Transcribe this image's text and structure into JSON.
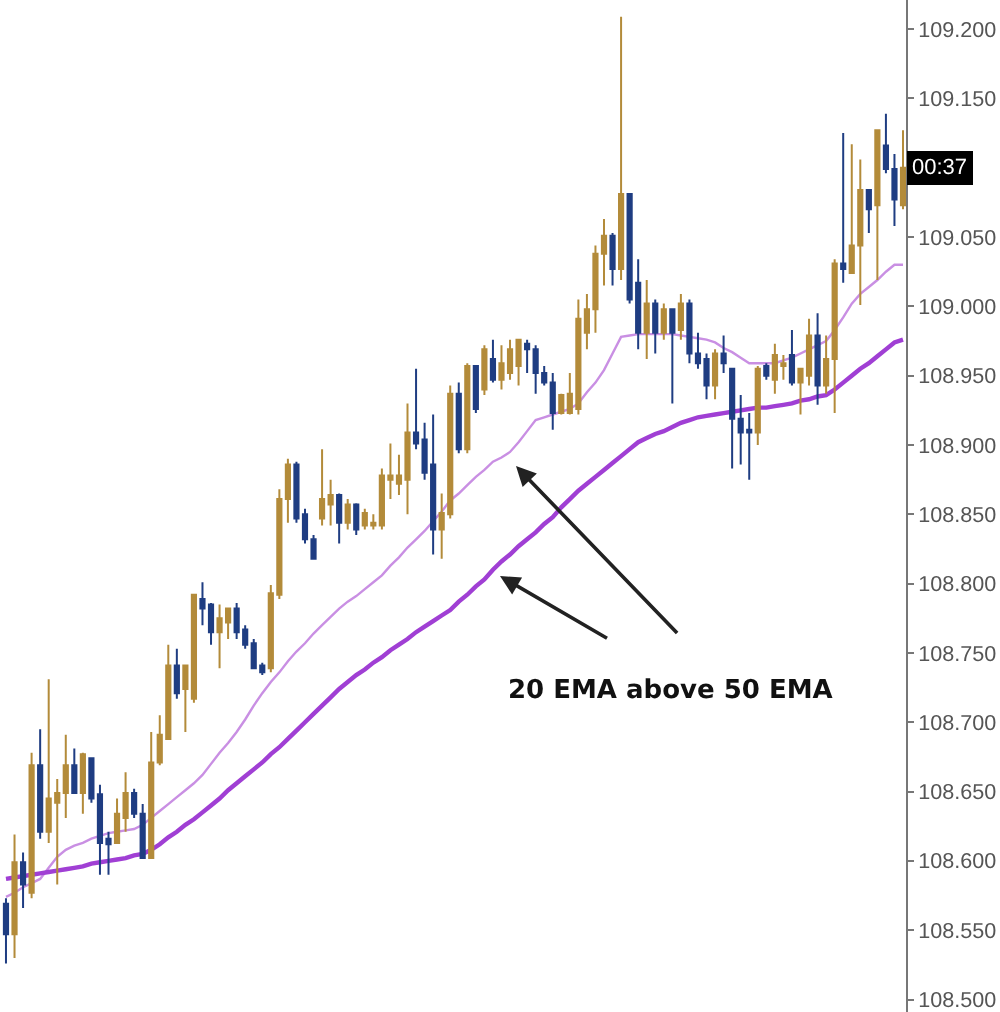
{
  "chart_data": {
    "type": "candlestick",
    "categories": [
      null,
      null,
      null,
      null,
      null,
      null,
      null,
      null,
      null,
      null,
      null,
      null,
      null,
      null,
      null,
      null,
      null,
      null,
      null,
      null,
      null,
      null,
      null,
      null,
      null,
      null,
      null,
      null,
      null,
      null,
      null,
      null,
      null,
      null,
      null,
      null,
      null,
      null,
      null,
      null,
      null,
      null,
      null,
      null,
      null,
      null,
      null,
      null,
      null,
      null,
      null,
      null,
      null,
      null,
      null,
      null,
      null,
      null,
      null,
      null,
      null,
      null,
      null,
      null,
      null,
      null,
      null,
      null,
      null,
      null,
      null,
      null,
      null,
      null,
      null,
      null,
      null,
      null,
      null,
      null,
      null,
      null,
      null,
      null,
      null,
      null,
      null,
      null,
      null,
      null,
      null,
      null,
      null,
      null,
      null,
      null,
      null,
      null,
      null,
      null,
      null,
      null,
      null,
      null,
      null,
      null
    ],
    "ohlc": [
      [
        108.569,
        108.573,
        108.526,
        108.547
      ],
      [
        108.547,
        108.619,
        108.53,
        108.599
      ],
      [
        108.599,
        108.606,
        108.566,
        108.583
      ],
      [
        108.577,
        108.678,
        108.573,
        108.669
      ],
      [
        108.669,
        108.695,
        108.616,
        108.621
      ],
      [
        108.621,
        108.731,
        108.613,
        108.645
      ],
      [
        108.642,
        108.659,
        108.583,
        108.649
      ],
      [
        108.649,
        108.691,
        108.631,
        108.669
      ],
      [
        108.669,
        108.681,
        108.649,
        108.649
      ],
      [
        108.649,
        108.678,
        108.634,
        108.677
      ],
      [
        108.674,
        108.674,
        108.642,
        108.645
      ],
      [
        108.648,
        108.655,
        108.59,
        108.613
      ],
      [
        108.616,
        108.621,
        108.59,
        108.612
      ],
      [
        108.613,
        108.645,
        108.613,
        108.634
      ],
      [
        108.631,
        108.664,
        108.621,
        108.649
      ],
      [
        108.649,
        108.652,
        108.631,
        108.634
      ],
      [
        108.634,
        108.641,
        108.602,
        108.602
      ],
      [
        108.602,
        108.693,
        108.602,
        108.671
      ],
      [
        108.671,
        108.705,
        108.669,
        108.691
      ],
      [
        108.688,
        108.756,
        108.688,
        108.741
      ],
      [
        108.741,
        108.753,
        108.717,
        108.721
      ],
      [
        108.724,
        108.741,
        108.693,
        108.741
      ],
      [
        108.717,
        108.792,
        108.714,
        108.792
      ],
      [
        108.789,
        108.801,
        108.77,
        108.782
      ],
      [
        108.785,
        108.786,
        108.756,
        108.765
      ],
      [
        108.765,
        108.785,
        108.739,
        108.775
      ],
      [
        108.772,
        108.782,
        108.76,
        108.782
      ],
      [
        108.782,
        108.786,
        108.76,
        108.765
      ],
      [
        108.767,
        108.77,
        108.753,
        108.756
      ],
      [
        108.757,
        108.76,
        108.739,
        108.739
      ],
      [
        108.741,
        108.743,
        108.734,
        108.736
      ],
      [
        108.739,
        108.799,
        108.736,
        108.793
      ],
      [
        108.792,
        108.868,
        108.789,
        108.861
      ],
      [
        108.861,
        108.89,
        108.844,
        108.886
      ],
      [
        108.886,
        108.888,
        108.844,
        108.847
      ],
      [
        108.85,
        108.854,
        108.829,
        108.832
      ],
      [
        108.832,
        108.835,
        108.818,
        108.818
      ],
      [
        108.847,
        108.897,
        108.842,
        108.861
      ],
      [
        108.857,
        108.875,
        108.842,
        108.864
      ],
      [
        108.864,
        108.865,
        108.829,
        108.844
      ],
      [
        108.844,
        108.861,
        108.839,
        108.857
      ],
      [
        108.857,
        108.858,
        108.835,
        108.839
      ],
      [
        108.842,
        108.854,
        108.839,
        108.851
      ],
      [
        108.842,
        108.85,
        108.839,
        108.844
      ],
      [
        108.842,
        108.883,
        108.839,
        108.878
      ],
      [
        108.875,
        108.901,
        108.861,
        108.878
      ],
      [
        108.872,
        108.893,
        108.864,
        108.878
      ],
      [
        108.875,
        108.93,
        108.85,
        108.909
      ],
      [
        108.909,
        108.955,
        108.897,
        108.901
      ],
      [
        108.904,
        108.916,
        108.875,
        108.88
      ],
      [
        108.886,
        108.922,
        108.821,
        108.839
      ],
      [
        108.839,
        108.865,
        108.818,
        108.851
      ],
      [
        108.85,
        108.943,
        108.847,
        108.937
      ],
      [
        108.937,
        108.945,
        108.894,
        108.897
      ],
      [
        108.897,
        108.959,
        108.894,
        108.957
      ],
      [
        108.957,
        108.957,
        108.923,
        108.926
      ],
      [
        108.94,
        108.972,
        108.936,
        108.969
      ],
      [
        108.962,
        108.976,
        108.945,
        108.947
      ],
      [
        108.947,
        108.972,
        108.94,
        108.959
      ],
      [
        108.952,
        108.976,
        108.947,
        108.969
      ],
      [
        108.957,
        108.976,
        108.943,
        108.976
      ],
      [
        108.973,
        108.976,
        108.952,
        108.969
      ],
      [
        108.969,
        108.972,
        108.937,
        108.952
      ],
      [
        108.952,
        108.957,
        108.943,
        108.945
      ],
      [
        108.945,
        108.952,
        108.911,
        108.923
      ],
      [
        108.923,
        108.937,
        108.922,
        108.936
      ],
      [
        108.923,
        108.952,
        108.922,
        108.937
      ],
      [
        108.926,
        109.005,
        108.922,
        108.991
      ],
      [
        108.981,
        109.009,
        108.969,
        108.998
      ],
      [
        108.998,
        109.044,
        108.981,
        109.038
      ],
      [
        109.038,
        109.063,
        109.015,
        109.051
      ],
      [
        109.051,
        109.053,
        109.015,
        109.027
      ],
      [
        109.027,
        109.209,
        109.019,
        109.081
      ],
      [
        109.081,
        109.081,
        109.002,
        109.005
      ],
      [
        109.017,
        109.034,
        108.969,
        108.981
      ],
      [
        108.981,
        109.019,
        108.962,
        109.002
      ],
      [
        109.002,
        109.005,
        108.966,
        108.981
      ],
      [
        108.981,
        109.002,
        108.976,
        108.998
      ],
      [
        108.998,
        108.998,
        108.93,
        108.981
      ],
      [
        108.983,
        109.009,
        108.976,
        109.002
      ],
      [
        109.002,
        109.005,
        108.959,
        108.966
      ],
      [
        108.966,
        108.981,
        108.955,
        108.959
      ],
      [
        108.962,
        108.966,
        108.933,
        108.943
      ],
      [
        108.943,
        108.969,
        108.933,
        108.966
      ],
      [
        108.966,
        108.979,
        108.952,
        108.959
      ],
      [
        108.955,
        108.955,
        108.883,
        108.919
      ],
      [
        108.919,
        108.936,
        108.886,
        108.909
      ],
      [
        108.911,
        108.923,
        108.875,
        108.909
      ],
      [
        108.909,
        108.957,
        108.9,
        108.955
      ],
      [
        108.957,
        108.959,
        108.947,
        108.95
      ],
      [
        108.947,
        108.973,
        108.937,
        108.965
      ],
      [
        108.957,
        108.965,
        108.947,
        108.959
      ],
      [
        108.965,
        108.983,
        108.943,
        108.945
      ],
      [
        108.945,
        108.955,
        108.922,
        108.955
      ],
      [
        108.95,
        108.991,
        108.943,
        108.979
      ],
      [
        108.979,
        108.995,
        108.929,
        108.943
      ],
      [
        108.943,
        108.979,
        108.937,
        108.962
      ],
      [
        108.962,
        109.034,
        108.923,
        109.031
      ],
      [
        109.031,
        109.125,
        109.017,
        109.027
      ],
      [
        109.024,
        109.117,
        109.024,
        109.044
      ],
      [
        109.044,
        109.106,
        109.001,
        109.084
      ],
      [
        109.084,
        109.084,
        109.053,
        109.07
      ],
      [
        109.073,
        109.127,
        109.019,
        109.127
      ],
      [
        109.116,
        109.139,
        109.096,
        109.099
      ],
      [
        109.099,
        109.11,
        109.058,
        109.077
      ],
      [
        109.073,
        109.127,
        109.07,
        109.1
      ]
    ],
    "colors": [
      "#1f3d82",
      "#b38b3a",
      "#1f3d82",
      "#b38b3a",
      "#1f3d82",
      "#b38b3a",
      "#b38b3a",
      "#b38b3a",
      "#1f3d82",
      "#b38b3a",
      "#1f3d82",
      "#1f3d82",
      "#1f3d82",
      "#b38b3a",
      "#b38b3a",
      "#1f3d82",
      "#1f3d82",
      "#b38b3a",
      "#b38b3a",
      "#b38b3a",
      "#1f3d82",
      "#b38b3a",
      "#b38b3a",
      "#1f3d82",
      "#1f3d82",
      "#b38b3a",
      "#b38b3a",
      "#1f3d82",
      "#1f3d82",
      "#1f3d82",
      "#1f3d82",
      "#b38b3a",
      "#b38b3a",
      "#b38b3a",
      "#1f3d82",
      "#1f3d82",
      "#1f3d82",
      "#b38b3a",
      "#b38b3a",
      "#1f3d82",
      "#b38b3a",
      "#1f3d82",
      "#b38b3a",
      "#b38b3a",
      "#b38b3a",
      "#b38b3a",
      "#b38b3a",
      "#b38b3a",
      "#1f3d82",
      "#1f3d82",
      "#1f3d82",
      "#b38b3a",
      "#b38b3a",
      "#1f3d82",
      "#b38b3a",
      "#1f3d82",
      "#b38b3a",
      "#1f3d82",
      "#b38b3a",
      "#b38b3a",
      "#b38b3a",
      "#1f3d82",
      "#1f3d82",
      "#1f3d82",
      "#1f3d82",
      "#b38b3a",
      "#b38b3a",
      "#b38b3a",
      "#b38b3a",
      "#b38b3a",
      "#b38b3a",
      "#1f3d82",
      "#b38b3a",
      "#1f3d82",
      "#1f3d82",
      "#b38b3a",
      "#1f3d82",
      "#b38b3a",
      "#1f3d82",
      "#b38b3a",
      "#1f3d82",
      "#1f3d82",
      "#1f3d82",
      "#b38b3a",
      "#1f3d82",
      "#1f3d82",
      "#1f3d82",
      "#1f3d82",
      "#b38b3a",
      "#1f3d82",
      "#b38b3a",
      "#b38b3a",
      "#1f3d82",
      "#b38b3a",
      "#b38b3a",
      "#1f3d82",
      "#b38b3a",
      "#b38b3a",
      "#1f3d82",
      "#b38b3a",
      "#b38b3a",
      "#1f3d82",
      "#b38b3a",
      "#1f3d82",
      "#1f3d82",
      "#b38b3a"
    ],
    "series": [
      {
        "type": "line",
        "color": "#c98fe3",
        "values": [
          108.574,
          108.577,
          108.581,
          108.584,
          108.587,
          108.595,
          108.603,
          108.608,
          108.611,
          108.613,
          108.616,
          108.618,
          108.62,
          108.621,
          108.622,
          108.623,
          108.626,
          108.631,
          108.636,
          108.641,
          108.646,
          108.651,
          108.656,
          108.662,
          108.67,
          108.678,
          108.685,
          108.693,
          108.702,
          108.712,
          108.721,
          108.729,
          108.736,
          108.744,
          108.751,
          108.757,
          108.764,
          108.77,
          108.776,
          108.782,
          108.787,
          108.791,
          108.796,
          108.801,
          108.806,
          108.813,
          108.819,
          108.826,
          108.832,
          108.838,
          108.845,
          108.852,
          108.86,
          108.865,
          108.871,
          108.877,
          108.882,
          108.888,
          108.891,
          108.895,
          108.902,
          108.91,
          108.918,
          108.92,
          108.922,
          108.924,
          108.926,
          108.93,
          108.938,
          108.945,
          108.954,
          108.966,
          108.978,
          108.979,
          108.98,
          108.98,
          108.98,
          108.98,
          108.98,
          108.979,
          108.978,
          108.977,
          108.976,
          108.974,
          108.97,
          108.967,
          108.963,
          108.959,
          108.959,
          108.959,
          108.959,
          108.961,
          108.963,
          108.966,
          108.969,
          108.972,
          108.975,
          108.983,
          108.992,
          109.002,
          109.009,
          109.014,
          109.019,
          109.025,
          109.03,
          109.03
        ]
      },
      {
        "type": "line",
        "color": "#a03fd4",
        "values": [
          108.587,
          108.588,
          108.589,
          108.59,
          108.591,
          108.592,
          108.593,
          108.594,
          108.595,
          108.596,
          108.598,
          108.599,
          108.6,
          108.601,
          108.602,
          108.604,
          108.605,
          108.608,
          108.612,
          108.617,
          108.621,
          108.626,
          108.63,
          108.635,
          108.64,
          108.645,
          108.651,
          108.656,
          108.661,
          108.666,
          108.671,
          108.677,
          108.682,
          108.688,
          108.694,
          108.7,
          108.706,
          108.712,
          108.718,
          108.724,
          108.729,
          108.734,
          108.738,
          108.743,
          108.747,
          108.752,
          108.756,
          108.76,
          108.765,
          108.769,
          108.773,
          108.777,
          108.781,
          108.787,
          108.792,
          108.798,
          108.803,
          108.81,
          108.816,
          108.821,
          108.827,
          108.832,
          108.837,
          108.843,
          108.848,
          108.855,
          108.861,
          108.867,
          108.872,
          108.877,
          108.882,
          108.887,
          108.892,
          108.897,
          108.902,
          108.905,
          108.908,
          108.91,
          108.913,
          108.916,
          108.918,
          108.92,
          108.921,
          108.922,
          108.923,
          108.924,
          108.925,
          108.926,
          108.927,
          108.927,
          108.928,
          108.929,
          108.93,
          108.932,
          108.933,
          108.935,
          108.936,
          108.94,
          108.945,
          108.95,
          108.955,
          108.959,
          108.964,
          108.969,
          108.974,
          108.976
        ]
      }
    ],
    "ylim": [
      108.491,
      109.221
    ],
    "yticks": [
      {
        "value": 108.5,
        "label": "108.500"
      },
      {
        "value": 108.55,
        "label": "108.550"
      },
      {
        "value": 108.6,
        "label": "108.600"
      },
      {
        "value": 108.65,
        "label": "108.650"
      },
      {
        "value": 108.7,
        "label": "108.700"
      },
      {
        "value": 108.75,
        "label": "108.750"
      },
      {
        "value": 108.8,
        "label": "108.800"
      },
      {
        "value": 108.85,
        "label": "108.850"
      },
      {
        "value": 108.9,
        "label": "108.900"
      },
      {
        "value": 108.95,
        "label": "108.950"
      },
      {
        "value": 109.0,
        "label": "109.000"
      },
      {
        "value": 109.05,
        "label": "109.050"
      },
      {
        "value": 109.1,
        "label": null
      },
      {
        "value": 109.15,
        "label": "109.150"
      },
      {
        "value": 109.2,
        "label": "109.200"
      }
    ],
    "tick_labels": "y",
    "annotations": [
      "20 EMA above 50 EMA",
      {
        "text": "00:37",
        "y": 109.1
      }
    ]
  }
}
